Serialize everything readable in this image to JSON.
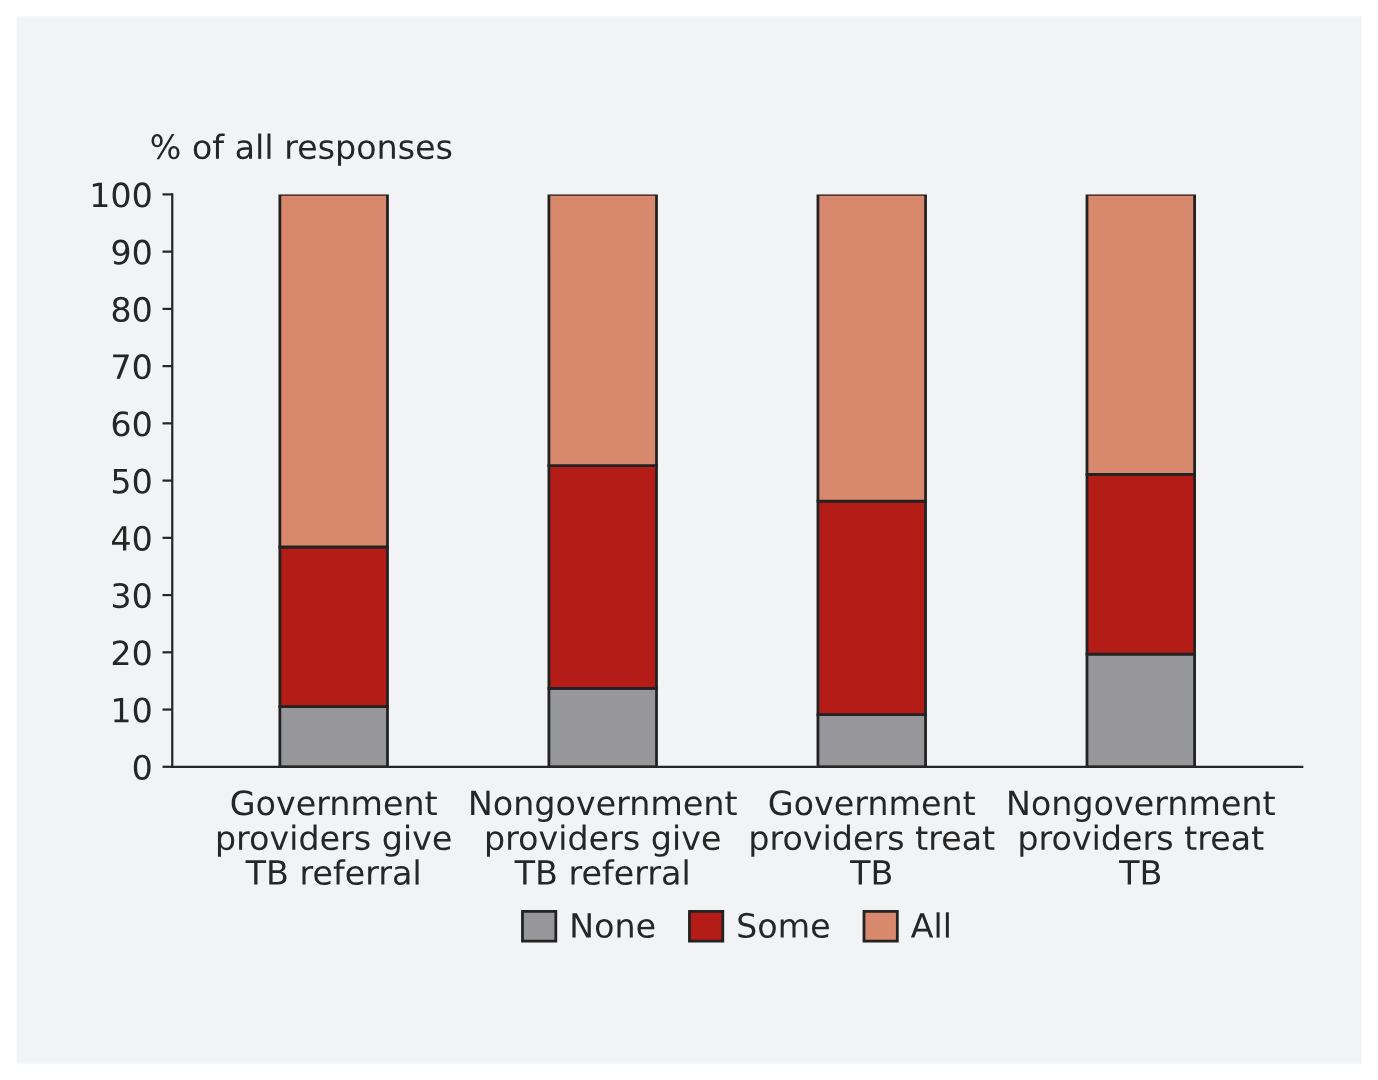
{
  "chart_data": {
    "type": "bar",
    "stacked": true,
    "ylabel": "% of all responses",
    "categories": [
      "Government providers give TB referral",
      "Nongovernment providers give TB referral",
      "Government providers treat TB",
      "Nongovernment providers treat TB"
    ],
    "series": [
      {
        "name": "None",
        "color": "#97979b",
        "values": [
          10.5,
          13.7,
          9.1,
          19.7
        ]
      },
      {
        "name": "Some",
        "color": "#b31c17",
        "values": [
          27.9,
          38.9,
          37.3,
          31.4
        ]
      },
      {
        "name": "All",
        "color": "#d8886d",
        "values": [
          61.6,
          47.4,
          53.6,
          48.9
        ]
      }
    ],
    "ylim": [
      0,
      100
    ],
    "yticks": [
      0,
      10,
      20,
      30,
      40,
      50,
      60,
      70,
      80,
      90,
      100
    ],
    "grid": false,
    "legend": "bottom"
  }
}
